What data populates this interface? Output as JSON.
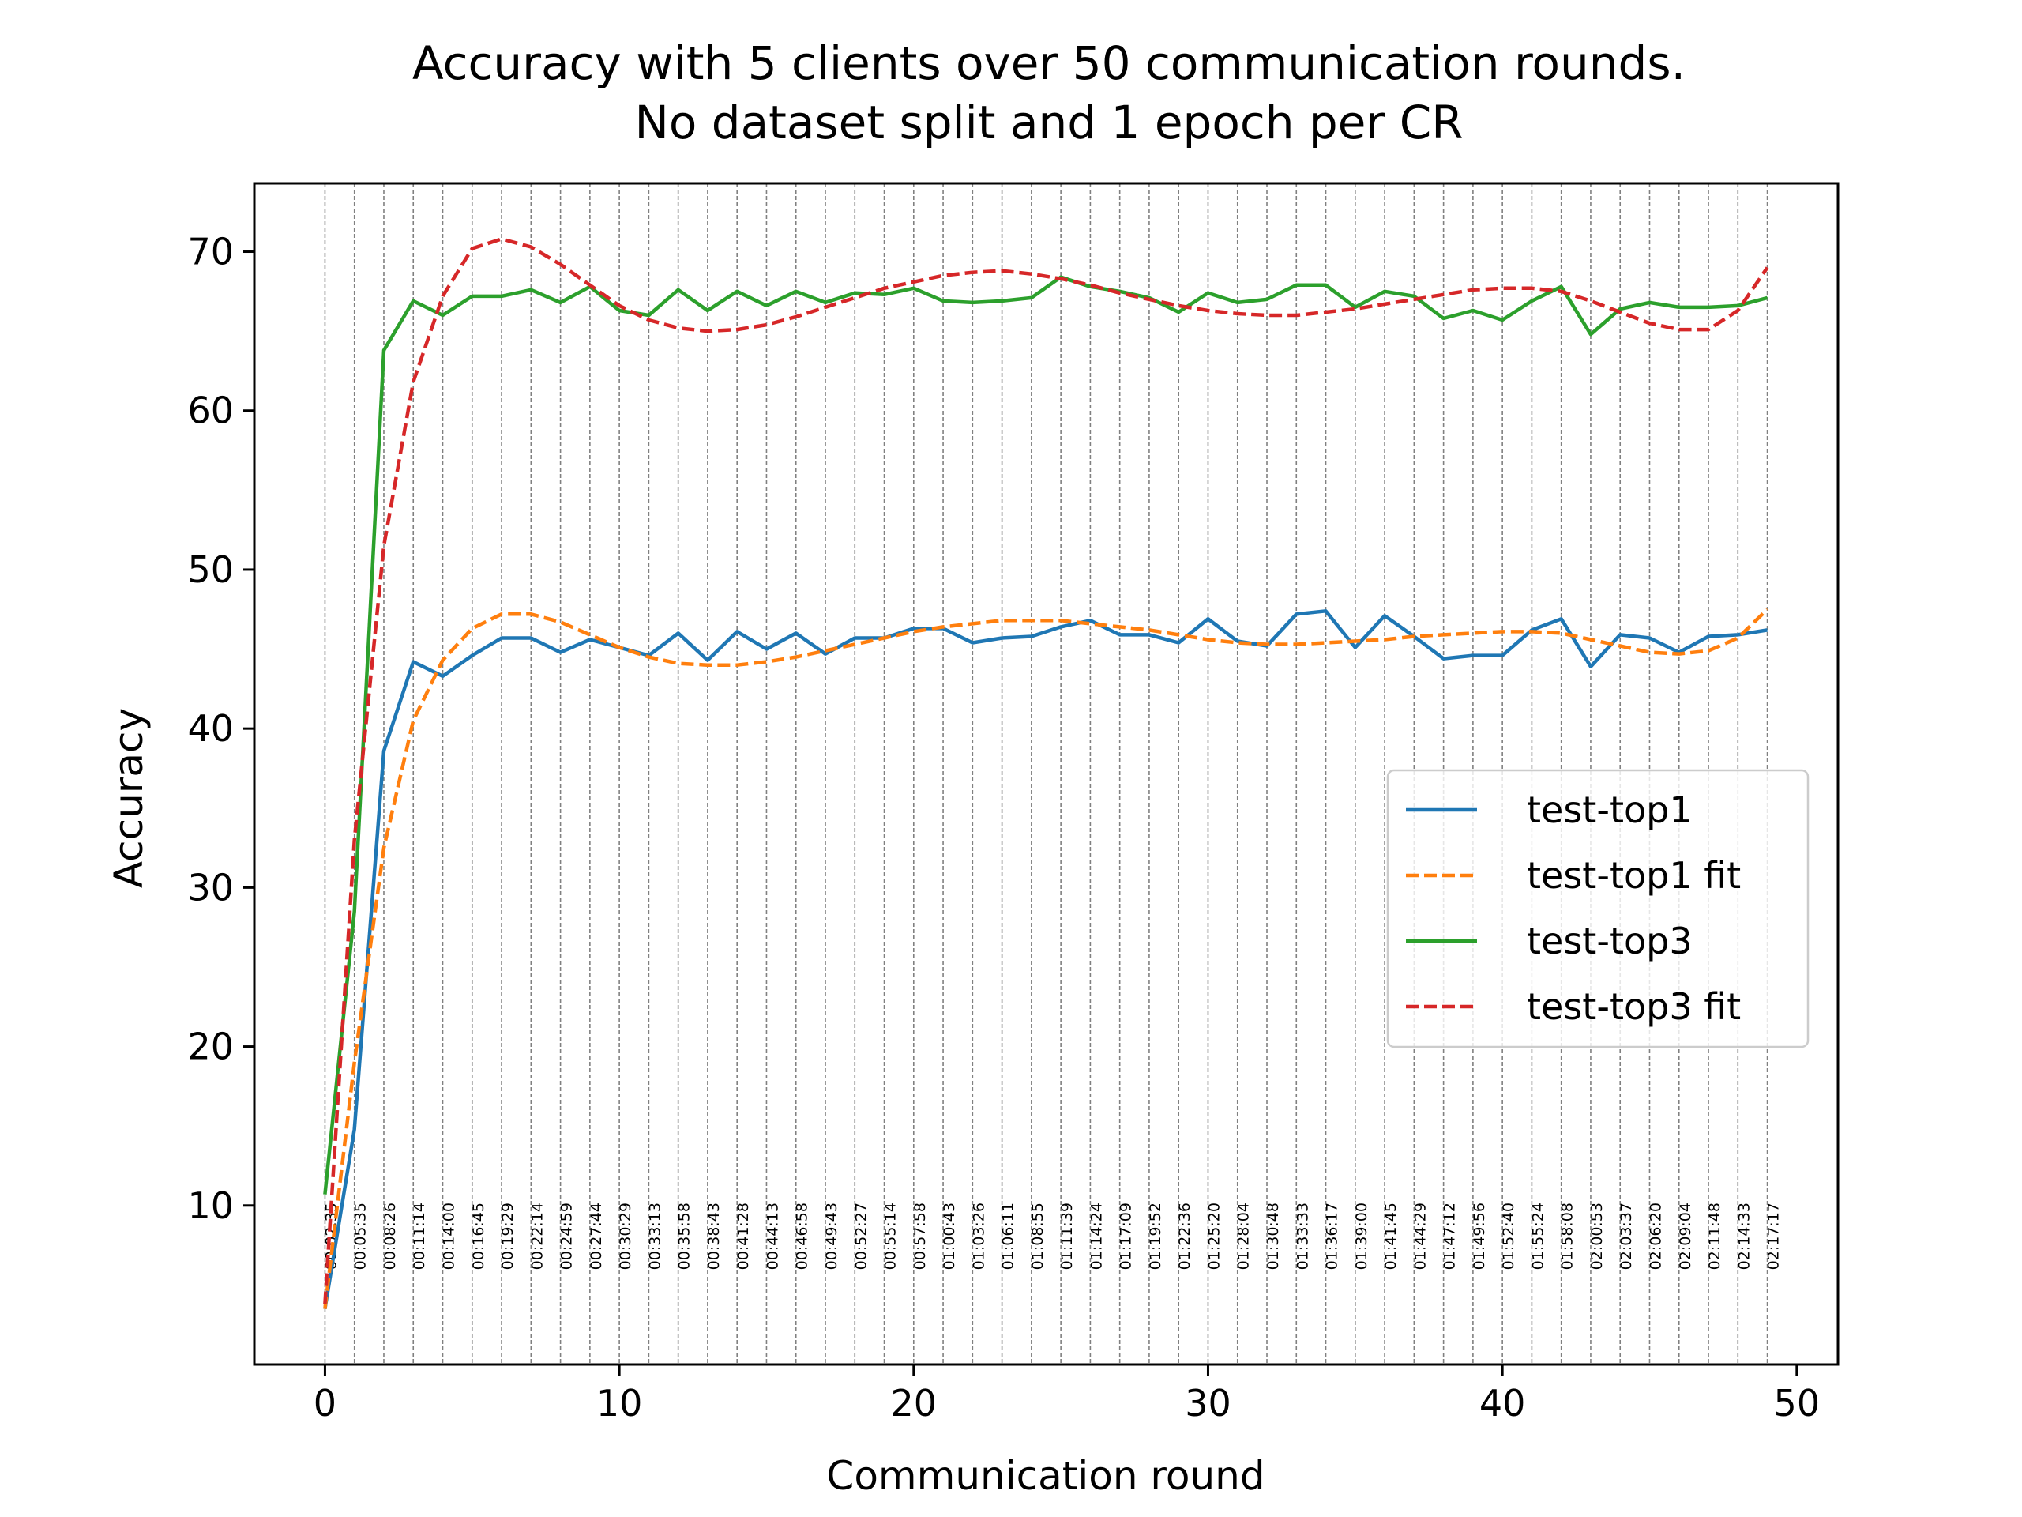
{
  "chart_data": {
    "type": "line",
    "title": [
      "Accuracy with 5 clients over 50 communication rounds.",
      "No dataset split and 1 epoch per CR"
    ],
    "xlabel": "Communication round",
    "ylabel": "Accuracy",
    "xlim": [
      -2.4,
      51.4
    ],
    "ylim": [
      0,
      74.3
    ],
    "xticks": [
      0,
      10,
      20,
      30,
      40,
      50
    ],
    "yticks": [
      10,
      20,
      30,
      40,
      50,
      60,
      70
    ],
    "grid": false,
    "legend_position": "center-right",
    "round_times": [
      "00:02:35",
      "00:05:35",
      "00:08:26",
      "00:11:14",
      "00:14:00",
      "00:16:45",
      "00:19:29",
      "00:22:14",
      "00:24:59",
      "00:27:44",
      "00:30:29",
      "00:33:13",
      "00:35:58",
      "00:38:43",
      "00:41:28",
      "00:44:13",
      "00:46:58",
      "00:49:43",
      "00:52:27",
      "00:55:14",
      "00:57:58",
      "01:00:43",
      "01:03:26",
      "01:06:11",
      "01:08:55",
      "01:11:39",
      "01:14:24",
      "01:17:09",
      "01:19:52",
      "01:22:36",
      "01:25:20",
      "01:28:04",
      "01:30:48",
      "01:33:33",
      "01:36:17",
      "01:39:00",
      "01:41:45",
      "01:44:29",
      "01:47:12",
      "01:49:56",
      "01:52:40",
      "01:55:24",
      "01:58:08",
      "02:00:53",
      "02:03:37",
      "02:06:20",
      "02:09:04",
      "02:11:48",
      "02:14:33",
      "02:17:17"
    ],
    "series": [
      {
        "name": "test-top1",
        "color": "#1f77b4",
        "style": "solid",
        "x": [
          0,
          1,
          2,
          3,
          4,
          5,
          6,
          7,
          8,
          9,
          10,
          11,
          12,
          13,
          14,
          15,
          16,
          17,
          18,
          19,
          20,
          21,
          22,
          23,
          24,
          25,
          26,
          27,
          28,
          29,
          30,
          31,
          32,
          33,
          34,
          35,
          36,
          37,
          38,
          39,
          40,
          41,
          42,
          43,
          44,
          45,
          46,
          47,
          48,
          49
        ],
        "values": [
          3.5,
          14.8,
          38.6,
          44.2,
          43.3,
          44.6,
          45.7,
          45.7,
          44.8,
          45.6,
          45.1,
          44.6,
          46.0,
          44.3,
          46.1,
          45.0,
          46.0,
          44.7,
          45.7,
          45.7,
          46.3,
          46.3,
          45.4,
          45.7,
          45.8,
          46.4,
          46.8,
          45.9,
          45.9,
          45.4,
          46.9,
          45.5,
          45.2,
          47.2,
          47.4,
          45.1,
          47.1,
          45.8,
          44.4,
          44.6,
          44.6,
          46.2,
          46.9,
          43.9,
          45.9,
          45.7,
          44.8,
          45.8,
          45.9,
          46.2
        ]
      },
      {
        "name": "test-top1 fit",
        "color": "#ff7f0e",
        "style": "dashed",
        "x": [
          0,
          1,
          2,
          3,
          4,
          5,
          6,
          7,
          8,
          9,
          10,
          11,
          12,
          13,
          14,
          15,
          16,
          17,
          18,
          19,
          20,
          21,
          22,
          23,
          24,
          25,
          26,
          27,
          28,
          29,
          30,
          31,
          32,
          33,
          34,
          35,
          36,
          37,
          38,
          39,
          40,
          41,
          42,
          43,
          44,
          45,
          46,
          47,
          48,
          49
        ],
        "values": [
          3.5,
          19.0,
          32.5,
          40.5,
          44.3,
          46.3,
          47.2,
          47.2,
          46.7,
          45.9,
          45.1,
          44.5,
          44.1,
          44.0,
          44.0,
          44.2,
          44.5,
          44.9,
          45.3,
          45.7,
          46.1,
          46.4,
          46.6,
          46.8,
          46.8,
          46.8,
          46.6,
          46.4,
          46.2,
          45.9,
          45.6,
          45.4,
          45.3,
          45.3,
          45.4,
          45.5,
          45.6,
          45.8,
          45.9,
          46.0,
          46.1,
          46.1,
          46.0,
          45.6,
          45.2,
          44.8,
          44.7,
          44.9,
          45.7,
          47.5
        ]
      },
      {
        "name": "test-top3",
        "color": "#2ca02c",
        "style": "solid",
        "x": [
          0,
          1,
          2,
          3,
          4,
          5,
          6,
          7,
          8,
          9,
          10,
          11,
          12,
          13,
          14,
          15,
          16,
          17,
          18,
          19,
          20,
          21,
          22,
          23,
          24,
          25,
          26,
          27,
          28,
          29,
          30,
          31,
          32,
          33,
          34,
          35,
          36,
          37,
          38,
          39,
          40,
          41,
          42,
          43,
          44,
          45,
          46,
          47,
          48,
          49
        ],
        "values": [
          10.7,
          28.5,
          63.8,
          66.9,
          66.0,
          67.2,
          67.2,
          67.6,
          66.8,
          67.8,
          66.3,
          66.0,
          67.6,
          66.3,
          67.5,
          66.6,
          67.5,
          66.8,
          67.4,
          67.3,
          67.7,
          66.9,
          66.8,
          66.9,
          67.1,
          68.4,
          67.8,
          67.5,
          67.1,
          66.2,
          67.4,
          66.8,
          67.0,
          67.9,
          67.9,
          66.5,
          67.5,
          67.2,
          65.8,
          66.3,
          65.7,
          66.9,
          67.8,
          64.8,
          66.4,
          66.8,
          66.5,
          66.5,
          66.6,
          67.1
        ]
      },
      {
        "name": "test-top3 fit",
        "color": "#d62728",
        "style": "dashed",
        "x": [
          0,
          1,
          2,
          3,
          4,
          5,
          6,
          7,
          8,
          9,
          10,
          11,
          12,
          13,
          14,
          15,
          16,
          17,
          18,
          19,
          20,
          21,
          22,
          23,
          24,
          25,
          26,
          27,
          28,
          29,
          30,
          31,
          32,
          33,
          34,
          35,
          36,
          37,
          38,
          39,
          40,
          41,
          42,
          43,
          44,
          45,
          46,
          47,
          48,
          49
        ],
        "values": [
          3.8,
          33.0,
          51.5,
          61.8,
          67.2,
          70.2,
          70.8,
          70.3,
          69.2,
          67.9,
          66.6,
          65.7,
          65.2,
          65.0,
          65.1,
          65.4,
          65.9,
          66.5,
          67.1,
          67.7,
          68.1,
          68.5,
          68.7,
          68.8,
          68.6,
          68.3,
          67.9,
          67.4,
          67.0,
          66.6,
          66.3,
          66.1,
          66.0,
          66.0,
          66.2,
          66.4,
          66.7,
          67.0,
          67.3,
          67.6,
          67.7,
          67.7,
          67.5,
          66.9,
          66.2,
          65.5,
          65.1,
          65.1,
          66.3,
          69.0
        ]
      }
    ]
  }
}
